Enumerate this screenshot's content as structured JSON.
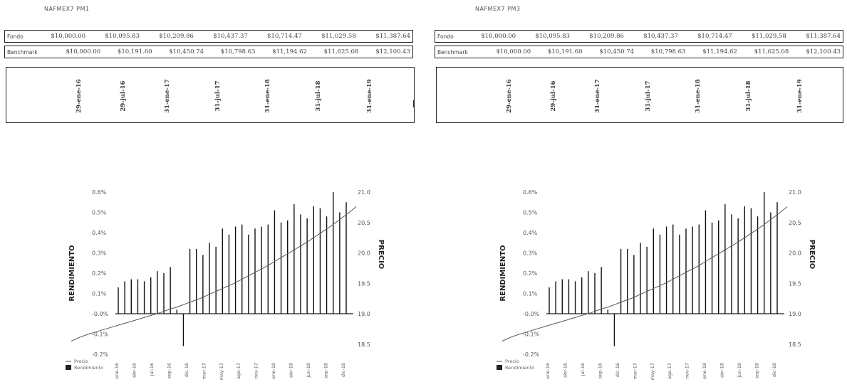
{
  "panels": [
    {
      "title": "NAFMEX7  PM1",
      "table": {
        "rows": [
          {
            "label": "Fondo",
            "values": [
              "$10,000.00",
              "$10,095.83",
              "$10,209.86",
              "$10,437.37",
              "$10,714.47",
              "$11,029.58",
              "$11,387.64"
            ]
          },
          {
            "label": "Benchmark",
            "values": [
              "$10,000.00",
              "$10,191.60",
              "$10,450.74",
              "$10,798.63",
              "$11,194.62",
              "$11,625.08",
              "$12,100.43"
            ]
          }
        ],
        "dates": [
          "29-ene-16",
          "29-jul-16",
          "31-ene-17",
          "31-jul-17",
          "31-ene-18",
          "31-jul-18",
          "31-ene-19"
        ]
      }
    },
    {
      "title": "NAFMEX7  PM3",
      "table": {
        "rows": [
          {
            "label": "Fondo",
            "values": [
              "$10,000.00",
              "$10,095.83",
              "$10,209.86",
              "$10,437.37",
              "$10,714.47",
              "$11,029.58",
              "$11,387.64"
            ]
          },
          {
            "label": "Benchmark",
            "values": [
              "$10,000.00",
              "$10,191.60",
              "$10,450.74",
              "$10,798.63",
              "$11,194.62",
              "$11,625.08",
              "$12,100.43"
            ]
          }
        ],
        "dates": [
          "29-ene-16",
          "29-jul-16",
          "31-ene-17",
          "31-jul-17",
          "31-ene-18",
          "31-jul-18",
          "31-ene-19"
        ]
      }
    }
  ],
  "chart_data": [
    {
      "type": "bar",
      "ylabel": "RENDIMIENTO",
      "y2label": "PRECIO",
      "ylim": [
        -0.2,
        0.6
      ],
      "y_ticks": [
        "0.6%",
        "0.5%",
        "0.4%",
        "0.3%",
        "0.2%",
        "0.1%",
        "-0.0%",
        "-0.1%",
        "-0.2%"
      ],
      "y2lim": [
        18.5,
        21.0
      ],
      "y2_ticks": [
        "21.0",
        "20.5",
        "20.0",
        "19.5",
        "19.0",
        "18.5"
      ],
      "x_ticks": [
        "ene-16",
        "abr-16",
        "jul-16",
        "sep-16",
        "dic-16",
        "mar-17",
        "may-17",
        "ago-17",
        "nov-17",
        "ene-18",
        "abr-18",
        "jun-18",
        "sep-18",
        "dic-18"
      ],
      "legend": [
        "Precio",
        "Rendimiento"
      ],
      "legend_position": "bottom-left",
      "rendimiento": [
        0.13,
        0.16,
        0.17,
        0.17,
        0.16,
        0.18,
        0.21,
        0.2,
        0.23,
        0.02,
        -0.16,
        0.32,
        0.32,
        0.29,
        0.35,
        0.33,
        0.42,
        0.39,
        0.43,
        0.44,
        0.39,
        0.42,
        0.43,
        0.44,
        0.51,
        0.45,
        0.46,
        0.54,
        0.49,
        0.47,
        0.53,
        0.52,
        0.48,
        0.6,
        0.5,
        0.55
      ],
      "precio": [
        18.55,
        18.61,
        18.66,
        18.7,
        18.74,
        18.78,
        18.82,
        18.86,
        18.9,
        18.94,
        18.98,
        19.02,
        19.07,
        19.11,
        19.16,
        19.21,
        19.26,
        19.32,
        19.38,
        19.44,
        19.5,
        19.57,
        19.64,
        19.71,
        19.78,
        19.86,
        19.94,
        20.02,
        20.1,
        20.18,
        20.27,
        20.36,
        20.45,
        20.55,
        20.65,
        20.76
      ]
    },
    {
      "type": "bar",
      "ylabel": "RENDIMIENTO",
      "y2label": "PRECIO",
      "ylim": [
        -0.2,
        0.6
      ],
      "y_ticks": [
        "0.6%",
        "0.5%",
        "0.4%",
        "0.3%",
        "0.2%",
        "0.1%",
        "-0.0%",
        "-0.1%",
        "-0.2%"
      ],
      "y2lim": [
        18.5,
        21.0
      ],
      "y2_ticks": [
        "21.0",
        "20.5",
        "20.0",
        "19.5",
        "19.0",
        "18.5"
      ],
      "x_ticks": [
        "ene-16",
        "abr-16",
        "jul-16",
        "sep-16",
        "dic-16",
        "mar-17",
        "may-17",
        "ago-17",
        "nov-17",
        "ene-18",
        "abr-18",
        "jun-18",
        "sep-18",
        "dic-18"
      ],
      "legend": [
        "Precio",
        "Rendimiento"
      ],
      "legend_position": "bottom-left",
      "rendimiento": [
        0.13,
        0.16,
        0.17,
        0.17,
        0.16,
        0.18,
        0.21,
        0.2,
        0.23,
        0.02,
        -0.16,
        0.32,
        0.32,
        0.29,
        0.35,
        0.33,
        0.42,
        0.39,
        0.43,
        0.44,
        0.39,
        0.42,
        0.43,
        0.44,
        0.51,
        0.45,
        0.46,
        0.54,
        0.49,
        0.47,
        0.53,
        0.52,
        0.48,
        0.6,
        0.5,
        0.55
      ],
      "precio": [
        18.55,
        18.61,
        18.66,
        18.7,
        18.74,
        18.78,
        18.82,
        18.86,
        18.9,
        18.94,
        18.98,
        19.02,
        19.07,
        19.11,
        19.16,
        19.21,
        19.26,
        19.32,
        19.38,
        19.44,
        19.5,
        19.57,
        19.64,
        19.71,
        19.78,
        19.86,
        19.94,
        20.02,
        20.1,
        20.18,
        20.27,
        20.36,
        20.45,
        20.55,
        20.65,
        20.76
      ]
    }
  ]
}
